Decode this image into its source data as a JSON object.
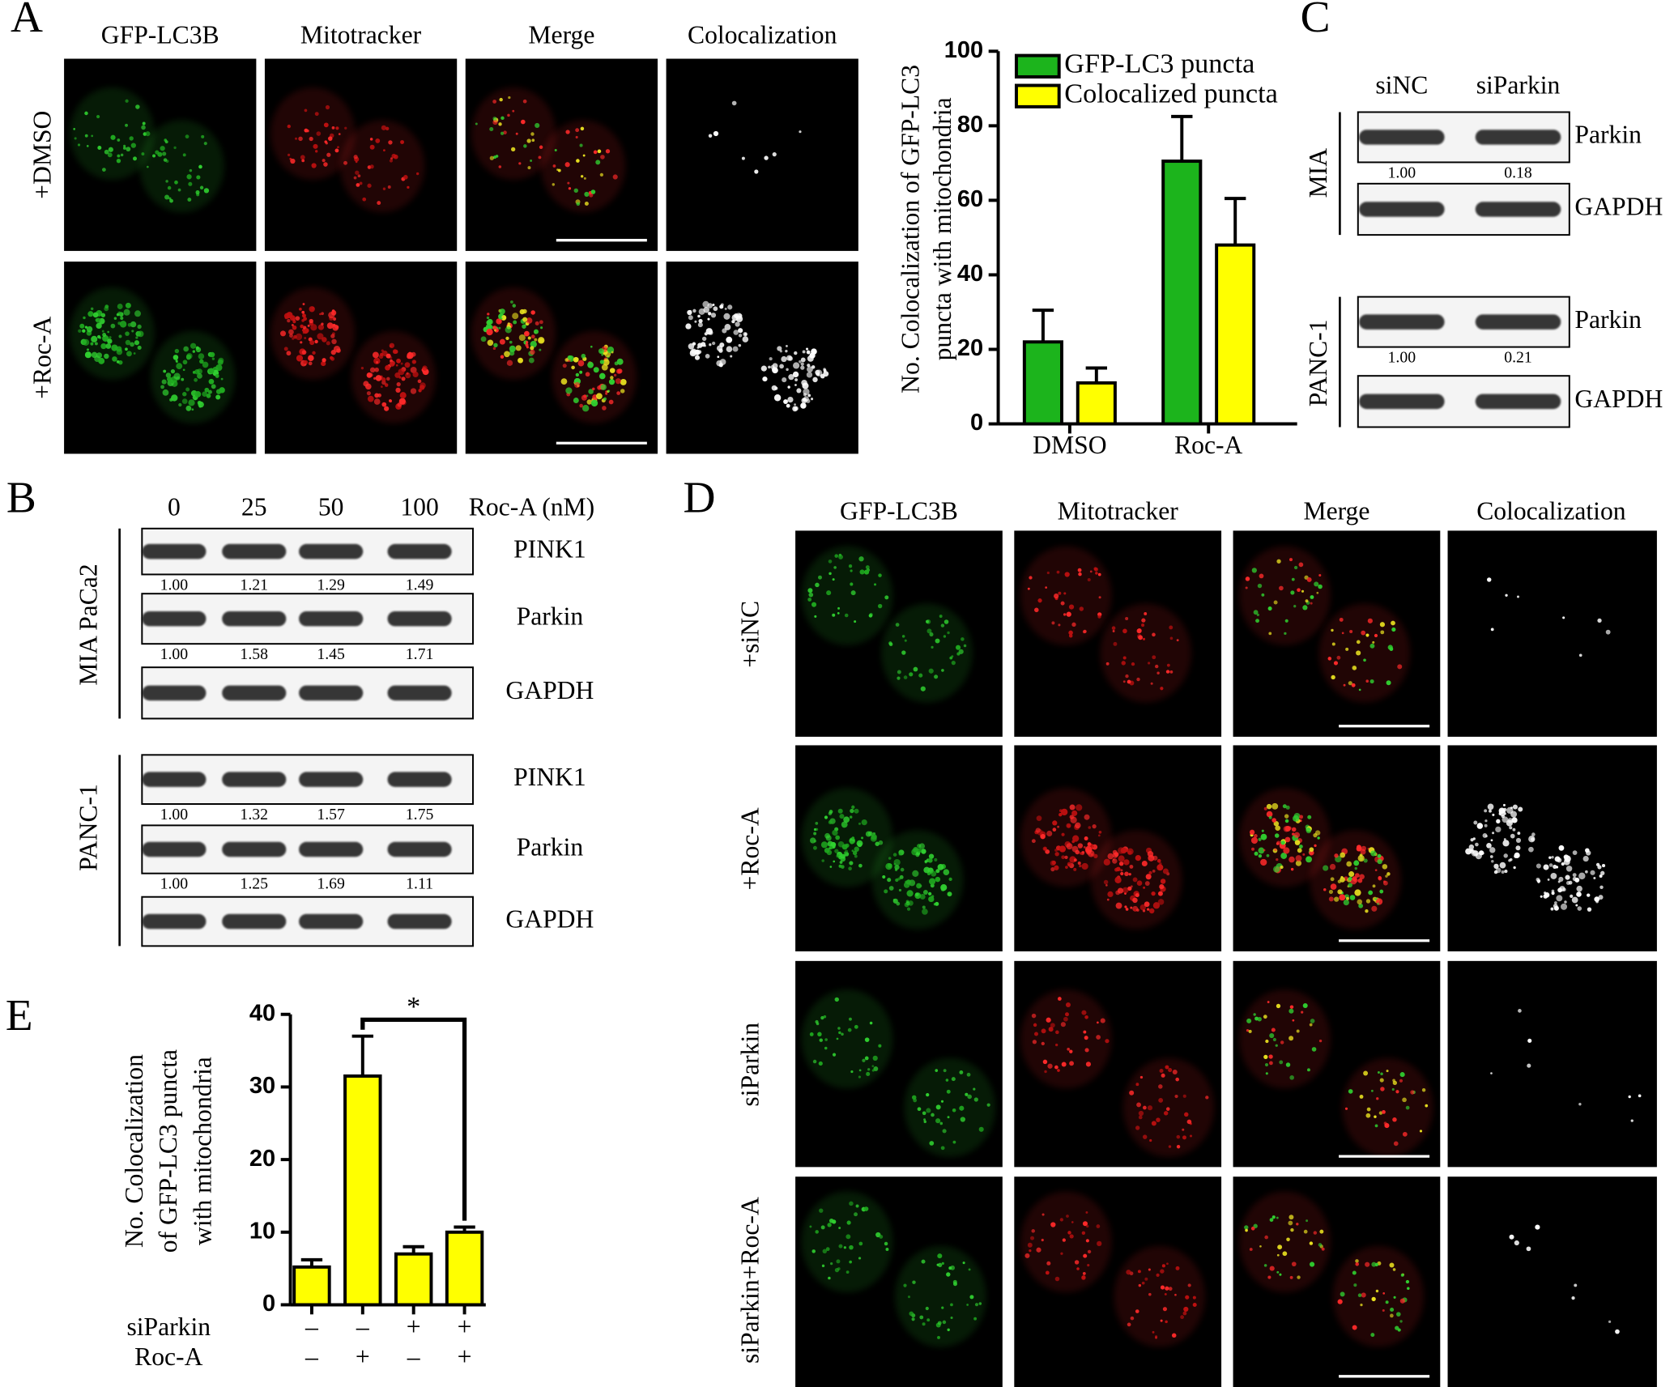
{
  "panel_labels": [
    "A",
    "B",
    "C",
    "D",
    "E"
  ],
  "panel_a": {
    "columns": [
      "GFP-LC3B",
      "Mitotracker",
      "Merge",
      "Colocalization"
    ],
    "rows": [
      "+DMSO",
      "+Roc-A"
    ]
  },
  "panel_b": {
    "lanes": [
      "0",
      "25",
      "50",
      "100"
    ],
    "treatment": "Roc-A (nM)",
    "groups": [
      {
        "cell_line": "MIA PaCa2",
        "blots": [
          {
            "protein": "PINK1",
            "quant": [
              "1.00",
              "1.21",
              "1.29",
              "1.49"
            ]
          },
          {
            "protein": "Parkin",
            "quant": [
              "1.00",
              "1.58",
              "1.45",
              "1.71"
            ]
          },
          {
            "protein": "GAPDH"
          }
        ]
      },
      {
        "cell_line": "PANC-1",
        "blots": [
          {
            "protein": "PINK1",
            "quant": [
              "1.00",
              "1.32",
              "1.57",
              "1.75"
            ]
          },
          {
            "protein": "Parkin",
            "quant": [
              "1.00",
              "1.25",
              "1.69",
              "1.11"
            ]
          },
          {
            "protein": "GAPDH"
          }
        ]
      }
    ]
  },
  "panel_c": {
    "lanes": [
      "siNC",
      "siParkin"
    ],
    "groups": [
      {
        "cell_line": "MIA",
        "blots": [
          {
            "protein": "Parkin",
            "quant": [
              "1.00",
              "0.18"
            ]
          },
          {
            "protein": "GAPDH"
          }
        ]
      },
      {
        "cell_line": "PANC-1",
        "blots": [
          {
            "protein": "Parkin",
            "quant": [
              "1.00",
              "0.21"
            ]
          },
          {
            "protein": "GAPDH"
          }
        ]
      }
    ]
  },
  "panel_d": {
    "columns": [
      "GFP-LC3B",
      "Mitotracker",
      "Merge",
      "Colocalization"
    ],
    "rows": [
      "+siNC",
      "+Roc-A",
      "siParkin",
      "siParkin+Roc-A"
    ]
  },
  "chart_data": [
    {
      "type": "bar",
      "ylabel": [
        "No. Colocalization of GFP-LC3",
        "puncta with mitochondria"
      ],
      "categories": [
        "DMSO",
        "Roc-A"
      ],
      "series": [
        {
          "name": "GFP-LC3  puncta",
          "color": "#1cb41c",
          "values": [
            22,
            70.5
          ],
          "errors": [
            8.5,
            12
          ]
        },
        {
          "name": "Colocalized puncta",
          "color": "#ffff00",
          "values": [
            11,
            48
          ],
          "errors": [
            4,
            12.5
          ]
        }
      ],
      "ylim": [
        0,
        100
      ],
      "yticks": [
        0,
        20,
        40,
        60,
        80,
        100
      ],
      "legend": "upper left"
    },
    {
      "type": "bar",
      "ylabel": [
        "No. Colocalization",
        "of GFP-LC3 puncta",
        "with mitochondria"
      ],
      "series": [
        {
          "color": "#ffff00",
          "values": [
            5.2,
            31.5,
            7,
            10
          ],
          "errors": [
            1,
            5.5,
            1,
            0.7
          ]
        }
      ],
      "conditions": [
        {
          "name": "siParkin",
          "values": [
            "–",
            "–",
            "+",
            "+"
          ]
        },
        {
          "name": "Roc-A",
          "values": [
            "–",
            "+",
            "–",
            "+"
          ]
        }
      ],
      "significance": {
        "label": "*",
        "between": [
          1,
          3
        ]
      },
      "ylim": [
        0,
        40
      ],
      "yticks": [
        0,
        10,
        20,
        30,
        40
      ]
    }
  ]
}
